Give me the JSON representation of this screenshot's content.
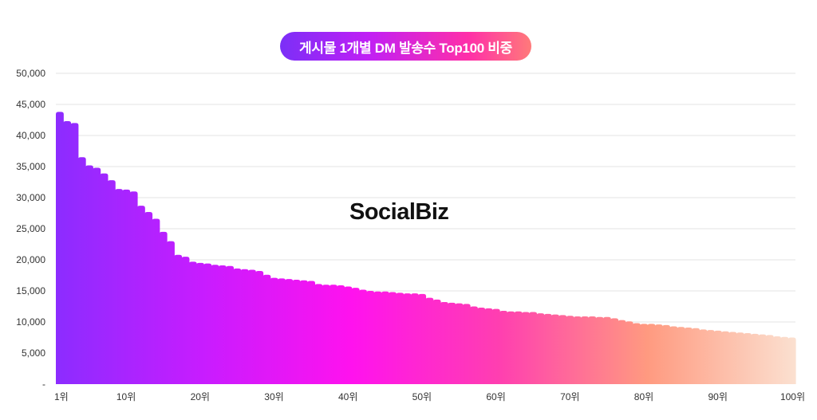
{
  "chart_data": {
    "type": "bar",
    "title": "게시물 1개별 DM 발송수 Top100 비중",
    "watermark": "SocialBiz",
    "xlabel": "",
    "ylabel": "",
    "ylim": [
      0,
      50000
    ],
    "yticks": [
      "-",
      "5,000",
      "10,000",
      "15,000",
      "20,000",
      "25,000",
      "30,000",
      "35,000",
      "40,000",
      "45,000",
      "50,000"
    ],
    "xtick_labels": [
      {
        "rank": 1,
        "label": "1위"
      },
      {
        "rank": 10,
        "label": "10위"
      },
      {
        "rank": 20,
        "label": "20위"
      },
      {
        "rank": 30,
        "label": "30위"
      },
      {
        "rank": 40,
        "label": "40위"
      },
      {
        "rank": 50,
        "label": "50위"
      },
      {
        "rank": 60,
        "label": "60위"
      },
      {
        "rank": 70,
        "label": "70위"
      },
      {
        "rank": 80,
        "label": "80위"
      },
      {
        "rank": 90,
        "label": "90위"
      },
      {
        "rank": 100,
        "label": "100위"
      }
    ],
    "grid": true,
    "gradient_colors": [
      "#8c2cff",
      "#c81cff",
      "#ff12ee",
      "#ff3fb0",
      "#ff9a80",
      "#fbe0d0"
    ],
    "values": [
      43800,
      42300,
      42000,
      36500,
      35200,
      34800,
      33900,
      32800,
      31400,
      31300,
      31000,
      28700,
      27700,
      26600,
      24500,
      23000,
      20800,
      20500,
      19700,
      19500,
      19400,
      19200,
      19100,
      19000,
      18600,
      18500,
      18400,
      18200,
      17600,
      17100,
      17000,
      16900,
      16800,
      16700,
      16600,
      16100,
      16000,
      16000,
      15900,
      15700,
      15500,
      15200,
      15000,
      14900,
      14900,
      14800,
      14700,
      14600,
      14600,
      14500,
      13900,
      13600,
      13200,
      13100,
      13000,
      12900,
      12500,
      12300,
      12200,
      12100,
      11800,
      11700,
      11700,
      11600,
      11600,
      11400,
      11300,
      11200,
      11100,
      11000,
      10900,
      10900,
      10900,
      10800,
      10800,
      10600,
      10300,
      10100,
      9800,
      9700,
      9700,
      9600,
      9500,
      9300,
      9200,
      9100,
      9000,
      8800,
      8700,
      8600,
      8500,
      8400,
      8300,
      8200,
      8100,
      8000,
      7900,
      7700,
      7600,
      7500
    ]
  }
}
